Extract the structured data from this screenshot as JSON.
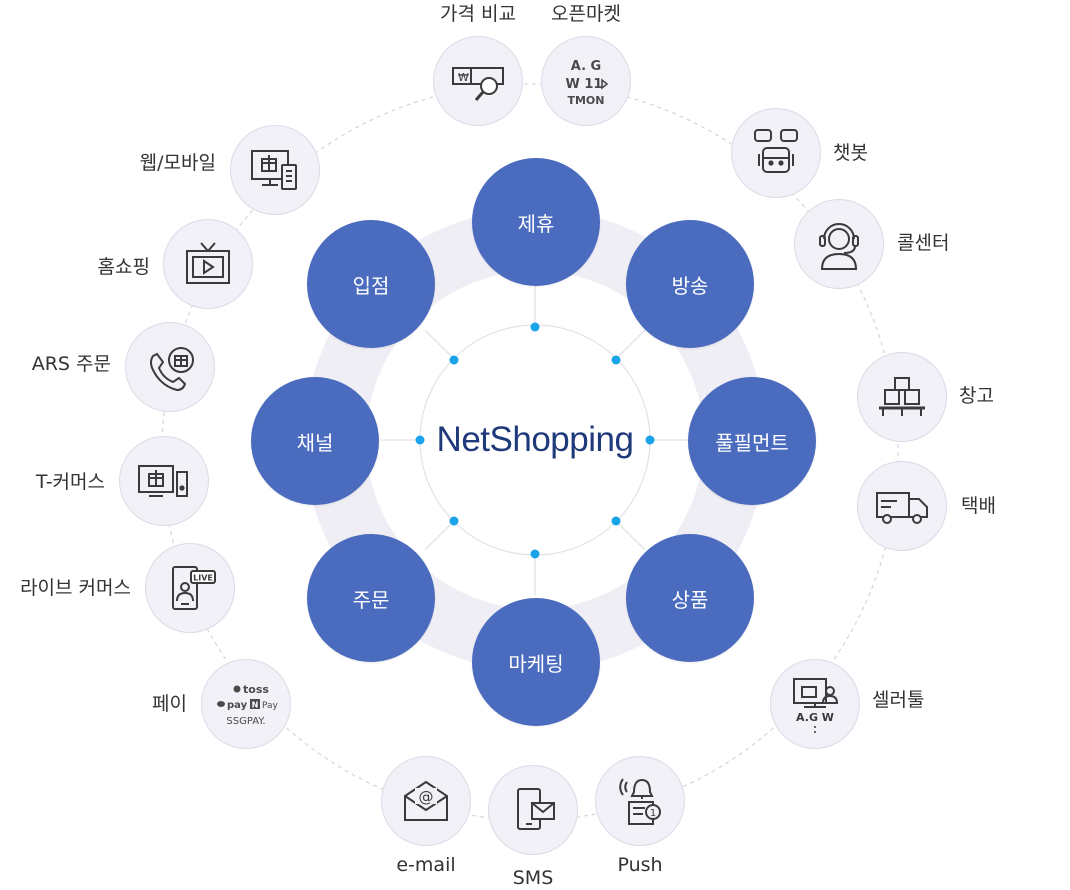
{
  "center": {
    "title": "NetShopping"
  },
  "inner_nodes": [
    {
      "key": "jehu",
      "label": "제휴"
    },
    {
      "key": "bangsong",
      "label": "방송"
    },
    {
      "key": "fulfillment",
      "label": "풀필먼트"
    },
    {
      "key": "sangpum",
      "label": "상품"
    },
    {
      "key": "marketing",
      "label": "마케팅"
    },
    {
      "key": "jumun",
      "label": "주문"
    },
    {
      "key": "chaenel",
      "label": "채널"
    },
    {
      "key": "ipjeom",
      "label": "입점"
    }
  ],
  "outer_nodes": [
    {
      "key": "price-compare",
      "label": "가격 비교",
      "icon": "price-compare-icon"
    },
    {
      "key": "open-market",
      "label": "오픈마켓",
      "icon": "open-market-logos-icon",
      "logos": [
        "A. G",
        "W 11",
        "TMON"
      ]
    },
    {
      "key": "chatbot",
      "label": "챗봇",
      "icon": "chatbot-icon"
    },
    {
      "key": "call-center",
      "label": "콜센터",
      "icon": "headset-icon"
    },
    {
      "key": "warehouse",
      "label": "창고",
      "icon": "boxes-icon"
    },
    {
      "key": "delivery",
      "label": "택배",
      "icon": "truck-icon"
    },
    {
      "key": "seller-tool",
      "label": "셀러툴",
      "icon": "seller-tool-icon",
      "mini": "A.G W"
    },
    {
      "key": "push",
      "label": "Push",
      "icon": "push-notification-icon"
    },
    {
      "key": "sms",
      "label": "SMS",
      "icon": "sms-phone-icon"
    },
    {
      "key": "email",
      "label": "e-mail",
      "icon": "email-icon"
    },
    {
      "key": "pay",
      "label": "페이",
      "icon": "pay-logos-icon",
      "logos": [
        "toss",
        "pay",
        "N",
        "Pay",
        "SSGPAY."
      ]
    },
    {
      "key": "live-commerce",
      "label": "라이브 커머스",
      "icon": "live-commerce-icon",
      "badge": "LIVE"
    },
    {
      "key": "t-commerce",
      "label": "T-커머스",
      "icon": "tv-commerce-icon"
    },
    {
      "key": "ars-order",
      "label": "ARS 주문",
      "icon": "phone-order-icon"
    },
    {
      "key": "home-shopping",
      "label": "홈쇼핑",
      "icon": "tv-play-icon"
    },
    {
      "key": "web-mobile",
      "label": "웹/모바일",
      "icon": "web-mobile-icon"
    }
  ],
  "colors": {
    "accent": "#4a6bbe",
    "title": "#1f3a7a",
    "dot": "#1aa3e8",
    "node_bg": "#f1f1f7",
    "ring": "#ededf3"
  }
}
